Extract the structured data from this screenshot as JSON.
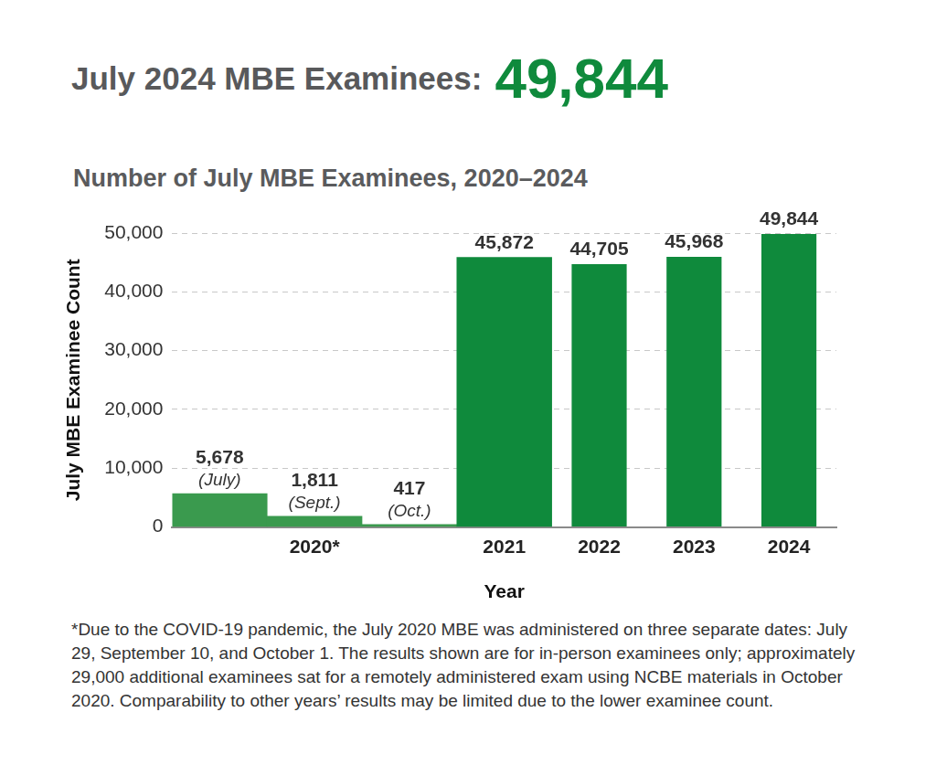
{
  "chart_data": {
    "type": "bar",
    "title": "July 2024 MBE Examinees:",
    "title_value": {
      "value": 49844,
      "label": "49,844"
    },
    "subtitle": "Number of July MBE Examinees, 2020–2024",
    "xlabel": "Year",
    "ylabel": "July MBE Examinee Count",
    "categories": [
      null,
      "2020*",
      null,
      "2021",
      "2022",
      "2023",
      "2024"
    ],
    "values": [
      5678,
      1811,
      417,
      45872,
      44705,
      45968,
      49844
    ],
    "value_labels": [
      "5,678",
      "1,811",
      "417",
      "45,872",
      "44,705",
      "45,968",
      "49,844"
    ],
    "value_notes": [
      "(July)",
      "(Sept.)",
      "(Oct.)",
      null,
      null,
      null,
      null
    ],
    "color": "#0f8a3c",
    "colors": [
      "#3a9a4e",
      "#3a9a4e",
      "#3a9a4e",
      "#0f8a3c",
      "#0f8a3c",
      "#0f8a3c",
      "#0f8a3c"
    ],
    "ylim": [
      0,
      50000
    ],
    "yticks": [
      0,
      {
        "value": 10000,
        "label": "10,000"
      },
      {
        "value": 20000,
        "label": "20,000"
      },
      {
        "value": 30000,
        "label": "30,000"
      },
      {
        "value": 40000,
        "label": "40,000"
      },
      {
        "value": 50000,
        "label": "50,000"
      }
    ],
    "grid": true,
    "data_labels": true,
    "footnote": "*Due to the COVID-19 pandemic, the July 2020 MBE was administered on three separate dates: July 29, September 10, and October 1. The results shown are for in-person examinees only; approximately 29,000 additional examinees sat for a remotely administered exam using NCBE materials in October 2020. Comparability to other years’ results may be limited due to the lower examinee count."
  }
}
